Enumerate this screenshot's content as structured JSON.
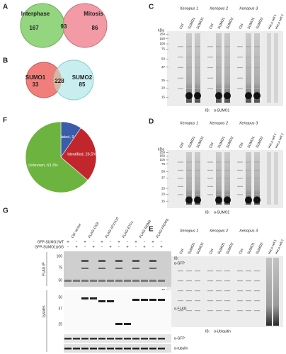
{
  "A": {
    "label": "A",
    "left": "Interphase",
    "right": "Mitosis",
    "counts": [
      167,
      93,
      86
    ]
  },
  "B": {
    "label": "B",
    "left": "SUMO1",
    "right": "SUMO2",
    "counts": [
      33,
      228,
      85
    ]
  },
  "F": {
    "label": "F",
    "slices": [
      {
        "label": "Validated, 9.5%",
        "value": 9.5,
        "color": "#3b5ca8"
      },
      {
        "label": "Identified, 26.5%",
        "value": 26.5,
        "color": "#c1262d"
      },
      {
        "label": "Unknown, 63.3%",
        "value": 63.3,
        "color": "#6db33f"
      }
    ]
  },
  "C": {
    "label": "C",
    "groups": [
      "Xenopus 1",
      "Xenopus 2",
      "Xenopus 3"
    ],
    "lanes": [
      "Ctrl",
      "SUMO1",
      "SUMO2"
    ],
    "extra": [
      "HeLa cell 1",
      "HeLa cell 2"
    ],
    "unit": "kDa",
    "markers": [
      "250",
      "150",
      "100",
      "75",
      "50",
      "37",
      "25",
      "20",
      "15"
    ],
    "ib": "IB:",
    "antibody": "α-SUMO1"
  },
  "D": {
    "label": "D",
    "groups": [
      "Xenopus 1",
      "Xenopus 2",
      "Xenopus 3"
    ],
    "lanes": [
      "Ctrl",
      "SUMO1",
      "SUMO2"
    ],
    "extra": [
      "HeLa cell 1",
      "HeLa cell 2"
    ],
    "unit": "kDa",
    "markers": [
      "250",
      "150",
      "100",
      "75",
      "50",
      "37",
      "25",
      "20",
      "15"
    ],
    "ib": "IB:",
    "antibody": "α-SUMO2"
  },
  "E": {
    "label": "E",
    "groups": [
      "Xenopus 1",
      "Xenopus 2",
      "Xenopus 3"
    ],
    "lanes": [
      "Ctrl",
      "SUMO1",
      "SUMO2"
    ],
    "extra": [
      "HeLa cell 1",
      "HeLa cell 2"
    ],
    "unit": "kDa",
    "markers": [
      "250",
      "150",
      "100",
      "75",
      "50",
      "37",
      "25",
      "20",
      "15"
    ],
    "ib": "IB:",
    "antibody": "α-Ubiquitin"
  },
  "G": {
    "label": "G",
    "lanes": [
      "Ctrl vector",
      "FLAG-CKB",
      "FLAG-ATXN10",
      "FLAG-ETF1",
      "FLAG-RBM4",
      "FLAG-PRPF6"
    ],
    "rows": [
      "GFP-SUMO1WT",
      "GFP-SUMO1ΔGG"
    ],
    "signs": [
      [
        "+",
        "-",
        "+",
        "-",
        "+",
        "-",
        "+",
        "-",
        "+",
        "-",
        "+",
        "-"
      ],
      [
        "-",
        "+",
        "-",
        "+",
        "-",
        "+",
        "-",
        "+",
        "-",
        "+",
        "-",
        "+"
      ]
    ],
    "ip": "FLAG IP",
    "lysate": "Lysates",
    "ip_markers": [
      "100",
      "75",
      "50"
    ],
    "lys_markers": [
      "50",
      "37",
      "25"
    ],
    "ib": "IB:",
    "antibodies": [
      "α-GFP",
      "α-FLAG",
      "α-GFP",
      "α-tubulin"
    ]
  }
}
